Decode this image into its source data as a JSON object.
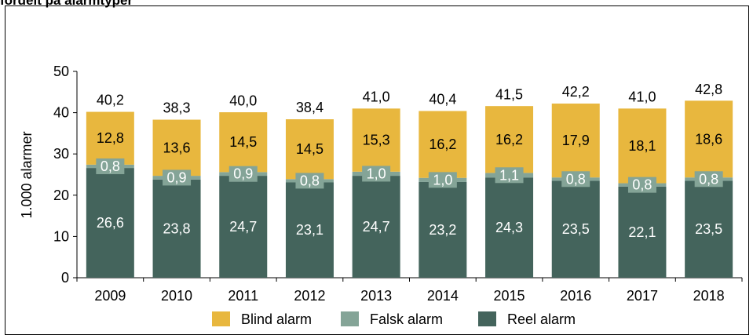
{
  "page": {
    "title": "fordelt på alarmtyper"
  },
  "chart_data": {
    "type": "bar",
    "stacked": true,
    "categories": [
      "2009",
      "2010",
      "2011",
      "2012",
      "2013",
      "2014",
      "2015",
      "2016",
      "2017",
      "2018"
    ],
    "series": [
      {
        "name": "Reel alarm",
        "color": "#44645c",
        "values": [
          26.6,
          23.8,
          24.7,
          23.1,
          24.7,
          23.2,
          24.3,
          23.5,
          22.1,
          23.5
        ],
        "labels": [
          "26,6",
          "23,8",
          "24,7",
          "23,1",
          "24,7",
          "23,2",
          "24,3",
          "23,5",
          "22,1",
          "23,5"
        ]
      },
      {
        "name": "Falsk alarm",
        "color": "#84a497",
        "values": [
          0.8,
          0.9,
          0.9,
          0.8,
          1.0,
          1.0,
          1.1,
          0.8,
          0.8,
          0.8
        ],
        "labels": [
          "0,8",
          "0,9",
          "0,9",
          "0,8",
          "1,0",
          "1,0",
          "1,1",
          "0,8",
          "0,8",
          "0,8"
        ]
      },
      {
        "name": "Blind alarm",
        "color": "#e8b73e",
        "values": [
          12.8,
          13.6,
          14.5,
          14.5,
          15.3,
          16.2,
          16.2,
          17.9,
          18.1,
          18.6
        ],
        "labels": [
          "12,8",
          "13,6",
          "14,5",
          "14,5",
          "15,3",
          "16,2",
          "16,2",
          "17,9",
          "18,1",
          "18,6"
        ]
      }
    ],
    "totals": [
      40.2,
      38.3,
      40.0,
      38.4,
      41.0,
      40.4,
      41.5,
      42.2,
      41.0,
      42.8
    ],
    "total_labels": [
      "40,2",
      "38,3",
      "40,0",
      "38,4",
      "41,0",
      "40,4",
      "41,5",
      "42,2",
      "41,0",
      "42,8"
    ],
    "ylabel": "1.000 alarmer",
    "ylim": [
      0,
      50
    ],
    "yticks": [
      0,
      10,
      20,
      30,
      40,
      50
    ],
    "legend": {
      "position": "bottom",
      "items": [
        {
          "label": "Blind alarm",
          "color": "#e8b73e"
        },
        {
          "label": "Falsk alarm",
          "color": "#84a497"
        },
        {
          "label": "Reel alarm",
          "color": "#44645c"
        }
      ]
    },
    "grid": false
  }
}
